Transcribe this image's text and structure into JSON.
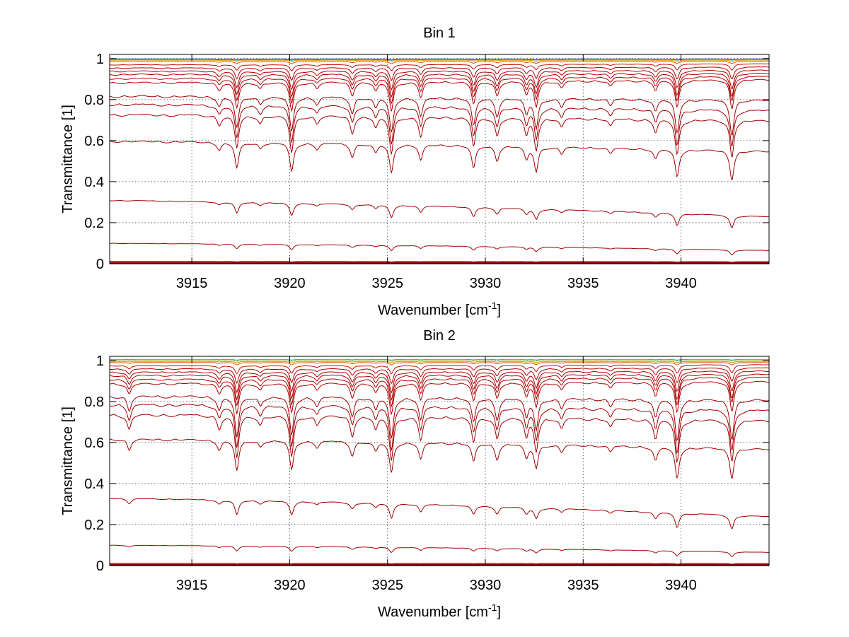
{
  "chart_data": [
    {
      "type": "line",
      "title": "Bin 1",
      "xlabel": "Wavenumber [cm",
      "xlabel_sup": "-1",
      "xlabel_end": "]",
      "ylabel": "Transmittance [1]",
      "xlim": [
        3910.8,
        3944.5
      ],
      "ylim": [
        0,
        1.02
      ],
      "xticks": [
        3915,
        3920,
        3925,
        3930,
        3935,
        3940
      ],
      "yticks": [
        0,
        0.2,
        0.4,
        0.6,
        0.8,
        1
      ],
      "yticklabels": [
        "0",
        "0.2",
        "0.4",
        "0.6",
        "0.8",
        "1"
      ],
      "grid": true,
      "absorption_lines": [
        {
          "x": 3916.4,
          "strength": 0.25
        },
        {
          "x": 3917.3,
          "strength": 0.9
        },
        {
          "x": 3918.5,
          "strength": 0.2
        },
        {
          "x": 3920.1,
          "strength": 1.0
        },
        {
          "x": 3921.4,
          "strength": 0.2
        },
        {
          "x": 3923.2,
          "strength": 0.45
        },
        {
          "x": 3924.4,
          "strength": 0.3
        },
        {
          "x": 3925.2,
          "strength": 1.0
        },
        {
          "x": 3926.7,
          "strength": 0.55
        },
        {
          "x": 3929.4,
          "strength": 0.8
        },
        {
          "x": 3930.6,
          "strength": 0.5
        },
        {
          "x": 3932.1,
          "strength": 0.45
        },
        {
          "x": 3932.6,
          "strength": 0.85
        },
        {
          "x": 3933.9,
          "strength": 0.25
        },
        {
          "x": 3936.4,
          "strength": 0.2
        },
        {
          "x": 3938.7,
          "strength": 0.35
        },
        {
          "x": 3939.8,
          "strength": 0.95
        },
        {
          "x": 3942.6,
          "strength": 1.0
        }
      ],
      "series": [
        {
          "baseline": [
            0.998,
            0.998
          ],
          "depth": 0.003,
          "color": "#1f3fbf"
        },
        {
          "baseline": [
            0.995,
            0.996
          ],
          "depth": 0.004,
          "color": "#2aa0c8"
        },
        {
          "baseline": [
            0.992,
            0.992
          ],
          "depth": 0.006,
          "color": "#e0a000"
        },
        {
          "baseline": [
            0.985,
            0.986
          ],
          "depth": 0.01,
          "color": "#e05000"
        },
        {
          "baseline": [
            0.97,
            0.975
          ],
          "depth": 0.03,
          "color": "#c0100a"
        },
        {
          "baseline": [
            0.955,
            0.96
          ],
          "depth": 0.06,
          "color": "#b00000"
        },
        {
          "baseline": [
            0.94,
            0.945
          ],
          "depth": 0.09,
          "color": "#b00000"
        },
        {
          "baseline": [
            0.925,
            0.93
          ],
          "depth": 0.11,
          "color": "#b00000"
        },
        {
          "baseline": [
            0.905,
            0.915
          ],
          "depth": 0.12,
          "color": "#b00000"
        },
        {
          "baseline": [
            0.885,
            0.9
          ],
          "depth": 0.14,
          "color": "#b00000"
        },
        {
          "baseline": [
            0.82,
            0.8
          ],
          "depth": 0.17,
          "color": "#a00000"
        },
        {
          "baseline": [
            0.78,
            0.75
          ],
          "depth": 0.18,
          "color": "#a00000"
        },
        {
          "baseline": [
            0.73,
            0.7
          ],
          "depth": 0.18,
          "color": "#a00000"
        },
        {
          "baseline": [
            0.6,
            0.55
          ],
          "depth": 0.14,
          "color": "#a00000"
        },
        {
          "baseline": [
            0.31,
            0.23
          ],
          "depth": 0.06,
          "color": "#a00000"
        },
        {
          "baseline": [
            0.1,
            0.065
          ],
          "depth": 0.025,
          "color": "#a00000"
        },
        {
          "baseline": [
            0.012,
            0.01
          ],
          "depth": 0.003,
          "color": "#a00000"
        },
        {
          "baseline": [
            0.003,
            0.003
          ],
          "depth": 0.0,
          "color": "#8b0000"
        }
      ]
    },
    {
      "type": "line",
      "title": "Bin 2",
      "xlabel": "Wavenumber [cm",
      "xlabel_sup": "-1",
      "xlabel_end": "]",
      "ylabel": "Transmittance [1]",
      "xlim": [
        3910.8,
        3944.5
      ],
      "ylim": [
        0,
        1.02
      ],
      "xticks": [
        3915,
        3920,
        3925,
        3930,
        3935,
        3940
      ],
      "yticks": [
        0,
        0.2,
        0.4,
        0.6,
        0.8,
        1
      ],
      "yticklabels": [
        "0",
        "0.2",
        "0.4",
        "0.6",
        "0.8",
        "1"
      ],
      "grid": true,
      "absorption_lines": [
        {
          "x": 3911.8,
          "strength": 0.35
        },
        {
          "x": 3916.4,
          "strength": 0.3
        },
        {
          "x": 3917.3,
          "strength": 1.0
        },
        {
          "x": 3918.5,
          "strength": 0.2
        },
        {
          "x": 3920.1,
          "strength": 0.95
        },
        {
          "x": 3921.4,
          "strength": 0.2
        },
        {
          "x": 3923.2,
          "strength": 0.45
        },
        {
          "x": 3924.4,
          "strength": 0.3
        },
        {
          "x": 3925.2,
          "strength": 1.0
        },
        {
          "x": 3926.7,
          "strength": 0.55
        },
        {
          "x": 3929.4,
          "strength": 0.6
        },
        {
          "x": 3930.6,
          "strength": 0.5
        },
        {
          "x": 3932.1,
          "strength": 0.45
        },
        {
          "x": 3932.6,
          "strength": 0.75
        },
        {
          "x": 3933.9,
          "strength": 0.25
        },
        {
          "x": 3936.4,
          "strength": 0.2
        },
        {
          "x": 3938.7,
          "strength": 0.45
        },
        {
          "x": 3939.8,
          "strength": 1.0
        },
        {
          "x": 3942.6,
          "strength": 0.95
        }
      ],
      "series": [
        {
          "baseline": [
            1.005,
            1.005
          ],
          "depth": 0.003,
          "color": "#2ab0c8"
        },
        {
          "baseline": [
            1.0,
            1.0
          ],
          "depth": 0.004,
          "color": "#9ad040"
        },
        {
          "baseline": [
            0.995,
            0.995
          ],
          "depth": 0.006,
          "color": "#e0a000"
        },
        {
          "baseline": [
            0.99,
            0.99
          ],
          "depth": 0.012,
          "color": "#e05000"
        },
        {
          "baseline": [
            0.975,
            0.98
          ],
          "depth": 0.04,
          "color": "#c0100a"
        },
        {
          "baseline": [
            0.96,
            0.965
          ],
          "depth": 0.07,
          "color": "#b00000"
        },
        {
          "baseline": [
            0.945,
            0.95
          ],
          "depth": 0.1,
          "color": "#b00000"
        },
        {
          "baseline": [
            0.93,
            0.935
          ],
          "depth": 0.12,
          "color": "#b00000"
        },
        {
          "baseline": [
            0.91,
            0.92
          ],
          "depth": 0.13,
          "color": "#b00000"
        },
        {
          "baseline": [
            0.89,
            0.9
          ],
          "depth": 0.15,
          "color": "#b00000"
        },
        {
          "baseline": [
            0.83,
            0.81
          ],
          "depth": 0.2,
          "color": "#a00000"
        },
        {
          "baseline": [
            0.79,
            0.76
          ],
          "depth": 0.21,
          "color": "#a00000"
        },
        {
          "baseline": [
            0.74,
            0.71
          ],
          "depth": 0.21,
          "color": "#a00000"
        },
        {
          "baseline": [
            0.62,
            0.57
          ],
          "depth": 0.15,
          "color": "#a00000"
        },
        {
          "baseline": [
            0.33,
            0.24
          ],
          "depth": 0.07,
          "color": "#a00000"
        },
        {
          "baseline": [
            0.1,
            0.065
          ],
          "depth": 0.025,
          "color": "#a00000"
        },
        {
          "baseline": [
            0.012,
            0.01
          ],
          "depth": 0.003,
          "color": "#a00000"
        },
        {
          "baseline": [
            0.003,
            0.003
          ],
          "depth": 0.0,
          "color": "#8b0000"
        }
      ]
    }
  ]
}
